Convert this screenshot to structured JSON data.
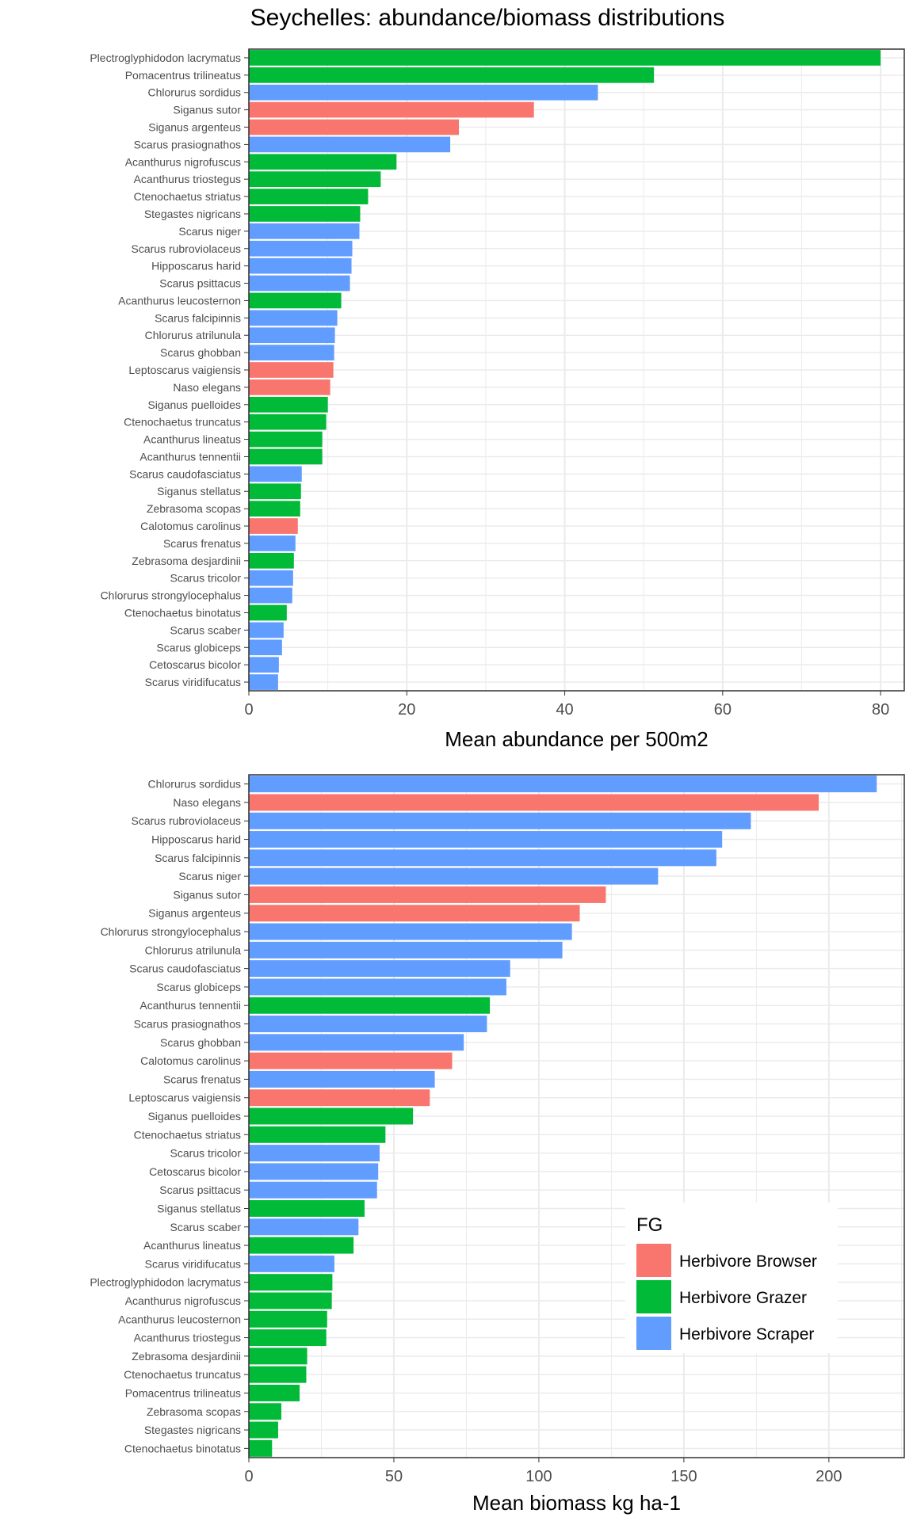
{
  "title": "Seychelles: abundance/biomass distributions",
  "colors": {
    "Herbivore Browser": "#F8766D",
    "Herbivore Grazer": "#00BA38",
    "Herbivore Scraper": "#619CFF",
    "grid": "#ebebeb",
    "panel_border": "#333333"
  },
  "legend": {
    "title": "FG",
    "items": [
      "Herbivore Browser",
      "Herbivore Grazer",
      "Herbivore Scraper"
    ],
    "placement": "bottom-right inside lower panel"
  },
  "chart_data": [
    {
      "type": "bar",
      "orientation": "horizontal",
      "xlabel": "Mean abundance per 500m2",
      "xlim": [
        0,
        83
      ],
      "xticks": [
        0,
        20,
        40,
        60,
        80
      ],
      "grid": true,
      "bars": [
        {
          "label": "Plectroglyphidodon lacrymatus",
          "value": 80,
          "group": "Herbivore Grazer"
        },
        {
          "label": "Pomacentrus trilineatus",
          "value": 51.3,
          "group": "Herbivore Grazer"
        },
        {
          "label": "Chlorurus sordidus",
          "value": 44.2,
          "group": "Herbivore Scraper"
        },
        {
          "label": "Siganus sutor",
          "value": 36.1,
          "group": "Herbivore Browser"
        },
        {
          "label": "Siganus argenteus",
          "value": 26.6,
          "group": "Herbivore Browser"
        },
        {
          "label": "Scarus prasiognathos",
          "value": 25.5,
          "group": "Herbivore Scraper"
        },
        {
          "label": "Acanthurus nigrofuscus",
          "value": 18.7,
          "group": "Herbivore Grazer"
        },
        {
          "label": "Acanthurus triostegus",
          "value": 16.7,
          "group": "Herbivore Grazer"
        },
        {
          "label": "Ctenochaetus striatus",
          "value": 15.1,
          "group": "Herbivore Grazer"
        },
        {
          "label": "Stegastes nigricans",
          "value": 14.1,
          "group": "Herbivore Grazer"
        },
        {
          "label": "Scarus niger",
          "value": 14.0,
          "group": "Herbivore Scraper"
        },
        {
          "label": "Scarus rubroviolaceus",
          "value": 13.1,
          "group": "Herbivore Scraper"
        },
        {
          "label": "Hipposcarus harid",
          "value": 13.0,
          "group": "Herbivore Scraper"
        },
        {
          "label": "Scarus psittacus",
          "value": 12.8,
          "group": "Herbivore Scraper"
        },
        {
          "label": "Acanthurus leucosternon",
          "value": 11.7,
          "group": "Herbivore Grazer"
        },
        {
          "label": "Scarus falcipinnis",
          "value": 11.2,
          "group": "Herbivore Scraper"
        },
        {
          "label": "Chlorurus atrilunula",
          "value": 10.9,
          "group": "Herbivore Scraper"
        },
        {
          "label": "Scarus ghobban",
          "value": 10.8,
          "group": "Herbivore Scraper"
        },
        {
          "label": "Leptoscarus vaigiensis",
          "value": 10.7,
          "group": "Herbivore Browser"
        },
        {
          "label": "Naso elegans",
          "value": 10.3,
          "group": "Herbivore Browser"
        },
        {
          "label": "Siganus puelloides",
          "value": 10.0,
          "group": "Herbivore Grazer"
        },
        {
          "label": "Ctenochaetus truncatus",
          "value": 9.8,
          "group": "Herbivore Grazer"
        },
        {
          "label": "Acanthurus lineatus",
          "value": 9.3,
          "group": "Herbivore Grazer"
        },
        {
          "label": "Acanthurus tennentii",
          "value": 9.3,
          "group": "Herbivore Grazer"
        },
        {
          "label": "Scarus caudofasciatus",
          "value": 6.7,
          "group": "Herbivore Scraper"
        },
        {
          "label": "Siganus stellatus",
          "value": 6.6,
          "group": "Herbivore Grazer"
        },
        {
          "label": "Zebrasoma scopas",
          "value": 6.5,
          "group": "Herbivore Grazer"
        },
        {
          "label": "Calotomus carolinus",
          "value": 6.2,
          "group": "Herbivore Browser"
        },
        {
          "label": "Scarus frenatus",
          "value": 5.9,
          "group": "Herbivore Scraper"
        },
        {
          "label": "Zebrasoma desjardinii",
          "value": 5.7,
          "group": "Herbivore Grazer"
        },
        {
          "label": "Scarus tricolor",
          "value": 5.6,
          "group": "Herbivore Scraper"
        },
        {
          "label": "Chlorurus strongylocephalus",
          "value": 5.5,
          "group": "Herbivore Scraper"
        },
        {
          "label": "Ctenochaetus binotatus",
          "value": 4.8,
          "group": "Herbivore Grazer"
        },
        {
          "label": "Scarus scaber",
          "value": 4.4,
          "group": "Herbivore Scraper"
        },
        {
          "label": "Scarus globiceps",
          "value": 4.2,
          "group": "Herbivore Scraper"
        },
        {
          "label": "Cetoscarus bicolor",
          "value": 3.8,
          "group": "Herbivore Scraper"
        },
        {
          "label": "Scarus viridifucatus",
          "value": 3.7,
          "group": "Herbivore Scraper"
        }
      ]
    },
    {
      "type": "bar",
      "orientation": "horizontal",
      "xlabel": "Mean biomass kg ha-1",
      "xlim": [
        0,
        226
      ],
      "xticks": [
        0,
        50,
        100,
        150,
        200
      ],
      "grid": true,
      "bars": [
        {
          "label": "Chlorurus sordidus",
          "value": 216.5,
          "group": "Herbivore Scraper"
        },
        {
          "label": "Naso elegans",
          "value": 196.5,
          "group": "Herbivore Browser"
        },
        {
          "label": "Scarus rubroviolaceus",
          "value": 173.1,
          "group": "Herbivore Scraper"
        },
        {
          "label": "Hipposcarus harid",
          "value": 163.2,
          "group": "Herbivore Scraper"
        },
        {
          "label": "Scarus falcipinnis",
          "value": 161.2,
          "group": "Herbivore Scraper"
        },
        {
          "label": "Scarus niger",
          "value": 141.1,
          "group": "Herbivore Scraper"
        },
        {
          "label": "Siganus sutor",
          "value": 123.1,
          "group": "Herbivore Browser"
        },
        {
          "label": "Siganus argenteus",
          "value": 114.1,
          "group": "Herbivore Browser"
        },
        {
          "label": "Chlorurus strongylocephalus",
          "value": 111.4,
          "group": "Herbivore Scraper"
        },
        {
          "label": "Chlorurus atrilunula",
          "value": 108.1,
          "group": "Herbivore Scraper"
        },
        {
          "label": "Scarus caudofasciatus",
          "value": 90.1,
          "group": "Herbivore Scraper"
        },
        {
          "label": "Scarus globiceps",
          "value": 88.8,
          "group": "Herbivore Scraper"
        },
        {
          "label": "Acanthurus tennentii",
          "value": 83.1,
          "group": "Herbivore Grazer"
        },
        {
          "label": "Scarus prasiognathos",
          "value": 82.1,
          "group": "Herbivore Scraper"
        },
        {
          "label": "Scarus ghobban",
          "value": 74.1,
          "group": "Herbivore Scraper"
        },
        {
          "label": "Calotomus carolinus",
          "value": 70.1,
          "group": "Herbivore Browser"
        },
        {
          "label": "Scarus frenatus",
          "value": 64.1,
          "group": "Herbivore Scraper"
        },
        {
          "label": "Leptoscarus vaigiensis",
          "value": 62.4,
          "group": "Herbivore Browser"
        },
        {
          "label": "Siganus puelloides",
          "value": 56.6,
          "group": "Herbivore Grazer"
        },
        {
          "label": "Ctenochaetus striatus",
          "value": 47.1,
          "group": "Herbivore Grazer"
        },
        {
          "label": "Scarus tricolor",
          "value": 45.1,
          "group": "Herbivore Scraper"
        },
        {
          "label": "Cetoscarus bicolor",
          "value": 44.6,
          "group": "Herbivore Scraper"
        },
        {
          "label": "Scarus psittacus",
          "value": 44.2,
          "group": "Herbivore Scraper"
        },
        {
          "label": "Siganus stellatus",
          "value": 39.9,
          "group": "Herbivore Grazer"
        },
        {
          "label": "Scarus scaber",
          "value": 37.8,
          "group": "Herbivore Scraper"
        },
        {
          "label": "Acanthurus lineatus",
          "value": 36.1,
          "group": "Herbivore Grazer"
        },
        {
          "label": "Scarus viridifucatus",
          "value": 29.5,
          "group": "Herbivore Scraper"
        },
        {
          "label": "Plectroglyphidodon lacrymatus",
          "value": 28.8,
          "group": "Herbivore Grazer"
        },
        {
          "label": "Acanthurus nigrofuscus",
          "value": 28.6,
          "group": "Herbivore Grazer"
        },
        {
          "label": "Acanthurus leucosternon",
          "value": 27.0,
          "group": "Herbivore Grazer"
        },
        {
          "label": "Acanthurus triostegus",
          "value": 26.7,
          "group": "Herbivore Grazer"
        },
        {
          "label": "Zebrasoma desjardinii",
          "value": 20.1,
          "group": "Herbivore Grazer"
        },
        {
          "label": "Ctenochaetus truncatus",
          "value": 19.8,
          "group": "Herbivore Grazer"
        },
        {
          "label": "Pomacentrus trilineatus",
          "value": 17.5,
          "group": "Herbivore Grazer"
        },
        {
          "label": "Zebrasoma scopas",
          "value": 11.2,
          "group": "Herbivore Grazer"
        },
        {
          "label": "Stegastes nigricans",
          "value": 10.1,
          "group": "Herbivore Grazer"
        },
        {
          "label": "Ctenochaetus binotatus",
          "value": 8.0,
          "group": "Herbivore Grazer"
        }
      ]
    }
  ]
}
